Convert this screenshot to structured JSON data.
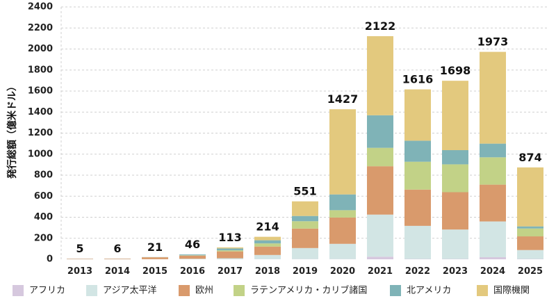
{
  "chart_data": {
    "type": "bar",
    "stacked": true,
    "ylabel": "発行総額（億米ドル）",
    "xlabel": "",
    "ylim": [
      0,
      2400
    ],
    "yticks": [
      0,
      200,
      400,
      600,
      800,
      1000,
      1200,
      1400,
      1600,
      1800,
      2000,
      2200,
      2400
    ],
    "grid": "horizontal-dashed",
    "legend_position": "bottom",
    "categories": [
      "2013",
      "2014",
      "2015",
      "2016",
      "2017",
      "2018",
      "2019",
      "2020",
      "2021",
      "2022",
      "2023",
      "2024",
      "2025"
    ],
    "totals": [
      5,
      6,
      21,
      46,
      113,
      214,
      551,
      1427,
      2122,
      1616,
      1698,
      1973,
      874
    ],
    "series": [
      {
        "name": "アフリカ",
        "color": "#d6c8de",
        "values": [
          0,
          0,
          0,
          0,
          0,
          1,
          2,
          2,
          25,
          3,
          3,
          20,
          3
        ]
      },
      {
        "name": "アジア太平洋",
        "color": "#d2e5e4",
        "values": [
          0,
          0,
          1,
          5,
          10,
          40,
          105,
          145,
          400,
          315,
          280,
          340,
          85
        ]
      },
      {
        "name": "欧州",
        "color": "#d99a6c",
        "values": [
          4,
          5,
          18,
          30,
          65,
          80,
          185,
          250,
          460,
          345,
          355,
          350,
          130
        ]
      },
      {
        "name": "ラテンアメリカ・カリブ諸国",
        "color": "#c2d287",
        "values": [
          0,
          0,
          1,
          3,
          10,
          30,
          70,
          70,
          175,
          265,
          265,
          260,
          75
        ]
      },
      {
        "name": "北アメリカ",
        "color": "#7fb3b7",
        "values": [
          1,
          1,
          1,
          8,
          18,
          30,
          50,
          150,
          310,
          200,
          135,
          130,
          20
        ]
      },
      {
        "name": "国際機関",
        "color": "#e3c97e",
        "values": [
          0,
          0,
          0,
          0,
          10,
          33,
          139,
          810,
          752,
          488,
          660,
          873,
          561
        ]
      }
    ]
  }
}
